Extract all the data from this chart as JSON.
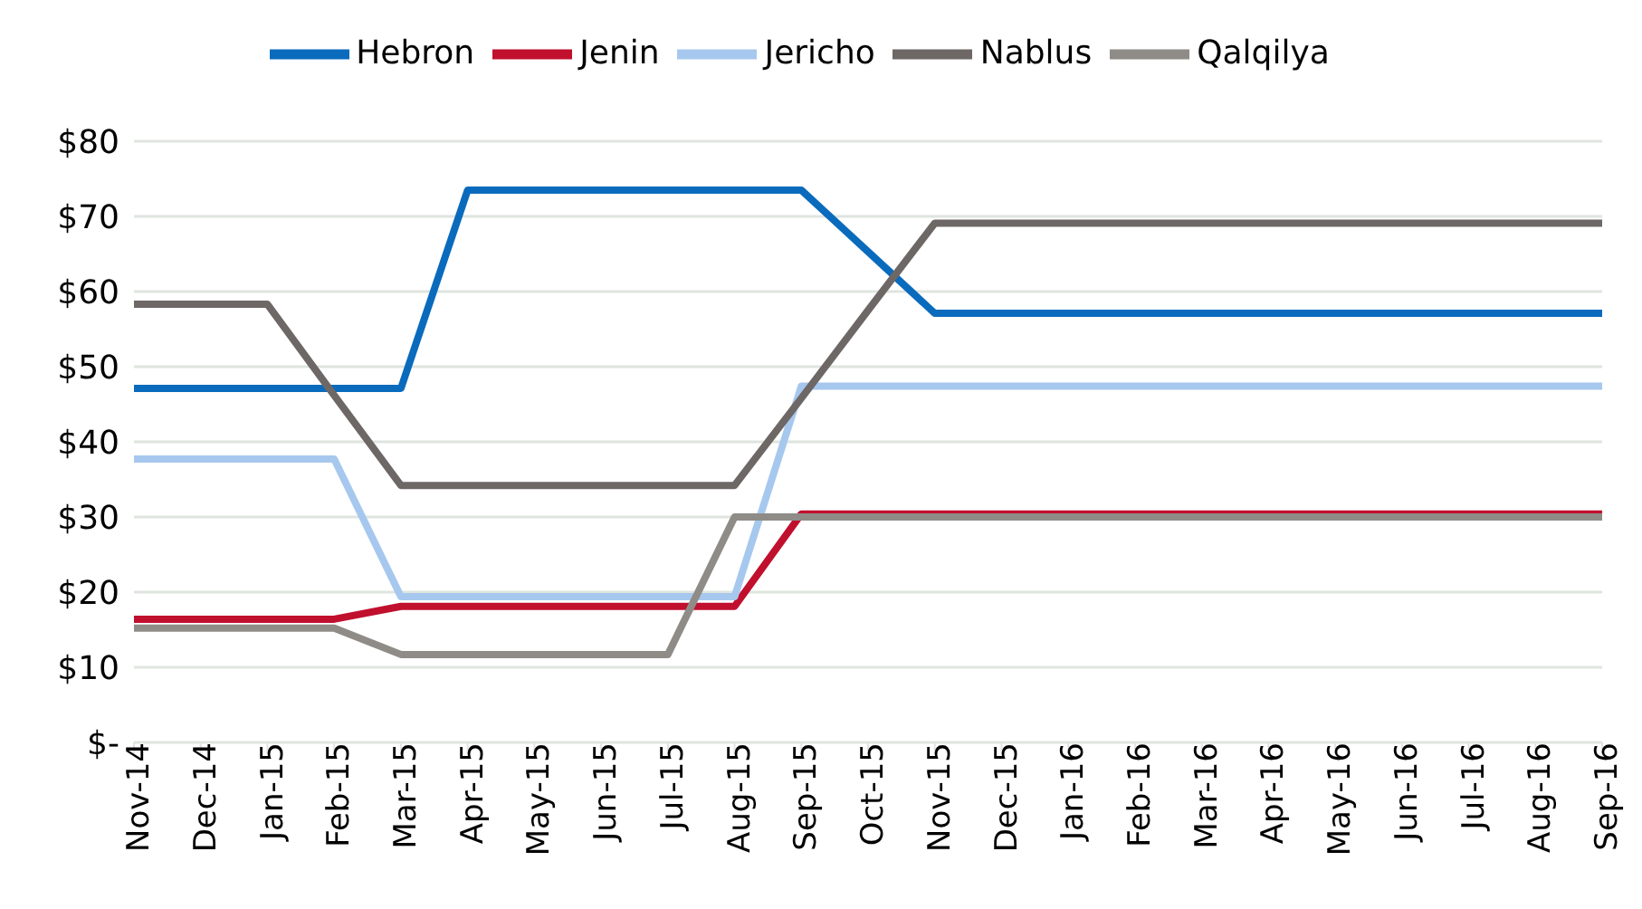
{
  "chart_data": {
    "type": "line",
    "categories": [
      "Nov-14",
      "Dec-14",
      "Jan-15",
      "Feb-15",
      "Mar-15",
      "Apr-15",
      "May-15",
      "Jun-15",
      "Jul-15",
      "Aug-15",
      "Sep-15",
      "Oct-15",
      "Nov-15",
      "Dec-15",
      "Jan-16",
      "Feb-16",
      "Mar-16",
      "Apr-16",
      "May-16",
      "Jun-16",
      "Jul-16",
      "Aug-16",
      "Sep-16"
    ],
    "series": [
      {
        "name": "Hebron",
        "color": "#0a6bbd",
        "values": [
          47.1,
          47.1,
          47.1,
          47.1,
          47.1,
          73.5,
          73.5,
          73.5,
          73.5,
          73.5,
          73.5,
          65.3,
          57.1,
          57.1,
          57.1,
          57.1,
          57.1,
          57.1,
          57.1,
          57.1,
          57.1,
          57.1,
          57.1
        ]
      },
      {
        "name": "Jenin",
        "color": "#c0102e",
        "values": [
          16.4,
          16.4,
          16.4,
          16.4,
          18.1,
          18.1,
          18.1,
          18.1,
          18.1,
          18.1,
          30.4,
          30.4,
          30.4,
          30.4,
          30.4,
          30.4,
          30.4,
          30.4,
          30.4,
          30.4,
          30.4,
          30.4,
          30.4
        ]
      },
      {
        "name": "Jericho",
        "color": "#a7c8ee",
        "values": [
          37.7,
          37.7,
          37.7,
          37.7,
          19.4,
          19.4,
          19.4,
          19.4,
          19.4,
          19.4,
          47.4,
          47.4,
          47.4,
          47.4,
          47.4,
          47.4,
          47.4,
          47.4,
          47.4,
          47.4,
          47.4,
          47.4,
          47.4
        ]
      },
      {
        "name": "Nablus",
        "color": "#6d6766",
        "values": [
          58.3,
          58.3,
          58.3,
          46.2,
          34.2,
          34.2,
          34.2,
          34.2,
          34.2,
          34.2,
          45.8,
          57.5,
          69.1,
          69.1,
          69.1,
          69.1,
          69.1,
          69.1,
          69.1,
          69.1,
          69.1,
          69.1,
          69.1
        ]
      },
      {
        "name": "Qalqilya",
        "color": "#8f8c88",
        "values": [
          15.2,
          15.2,
          15.2,
          15.2,
          11.7,
          11.7,
          11.7,
          11.7,
          11.7,
          30.0,
          30.0,
          30.0,
          30.0,
          30.0,
          30.0,
          30.0,
          30.0,
          30.0,
          30.0,
          30.0,
          30.0,
          30.0,
          30.0
        ]
      }
    ],
    "ylim": [
      0,
      80
    ],
    "yticks": [
      {
        "value": 0,
        "label": "$-"
      },
      {
        "value": 10,
        "label": "$10"
      },
      {
        "value": 20,
        "label": "$20"
      },
      {
        "value": 30,
        "label": "$30"
      },
      {
        "value": 40,
        "label": "$40"
      },
      {
        "value": 50,
        "label": "$50"
      },
      {
        "value": 60,
        "label": "$60"
      },
      {
        "value": 70,
        "label": "$70"
      },
      {
        "value": 80,
        "label": "$80"
      }
    ],
    "grid": "y",
    "legend": "top",
    "marker": "none",
    "line_style": "solid"
  }
}
